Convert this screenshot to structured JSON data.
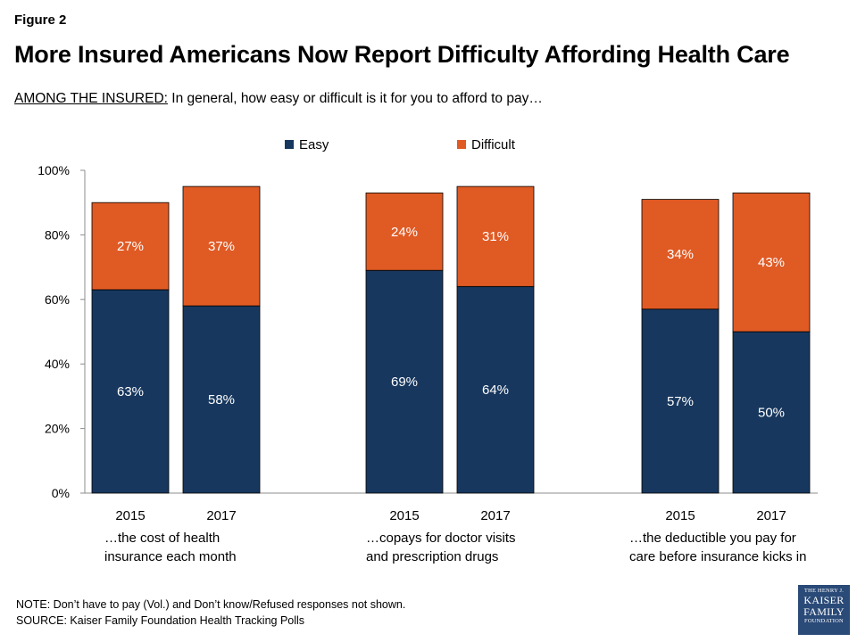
{
  "figure_label": "Figure 2",
  "title": "More Insured Americans Now Report Difficulty Affording Health Care",
  "subtitle_lead": "AMONG THE INSURED:",
  "subtitle_rest": " In general, how easy or difficult is it for you to afford to pay…",
  "note": "NOTE: Don’t have to pay (Vol.) and Don’t know/Refused  responses  not shown.",
  "source": "SOURCE: Kaiser Family Foundation  Health Tracking Polls",
  "logo": {
    "line1": "THE HENRY J.",
    "line2": "KAISER",
    "line3": "FAMILY",
    "line4": "FOUNDATION"
  },
  "chart_data": {
    "type": "bar",
    "stacked": true,
    "ylim": [
      0,
      100
    ],
    "yticks": [
      "0%",
      "20%",
      "40%",
      "60%",
      "80%",
      "100%"
    ],
    "ytick_values": [
      0,
      20,
      40,
      60,
      80,
      100
    ],
    "legend": [
      {
        "name": "Easy",
        "color": "#17375e"
      },
      {
        "name": "Difficult",
        "color": "#e05a24"
      }
    ],
    "legend_position": "top-center",
    "groups": [
      {
        "label": [
          "…the cost of health",
          "insurance each month"
        ],
        "bars": [
          {
            "year": "2015",
            "easy": 63,
            "difficult": 27,
            "easy_label": "63%",
            "difficult_label": "27%"
          },
          {
            "year": "2017",
            "easy": 58,
            "difficult": 37,
            "easy_label": "58%",
            "difficult_label": "37%"
          }
        ]
      },
      {
        "label": [
          "…copays for doctor visits",
          "and prescription drugs"
        ],
        "bars": [
          {
            "year": "2015",
            "easy": 69,
            "difficult": 24,
            "easy_label": "69%",
            "difficult_label": "24%"
          },
          {
            "year": "2017",
            "easy": 64,
            "difficult": 31,
            "easy_label": "64%",
            "difficult_label": "31%"
          }
        ]
      },
      {
        "label": [
          "…the deductible you pay for",
          "care before insurance kicks in"
        ],
        "bars": [
          {
            "year": "2015",
            "easy": 57,
            "difficult": 34,
            "easy_label": "57%",
            "difficult_label": "34%"
          },
          {
            "year": "2017",
            "easy": 50,
            "difficult": 43,
            "easy_label": "50%",
            "difficult_label": "43%"
          }
        ]
      }
    ]
  }
}
